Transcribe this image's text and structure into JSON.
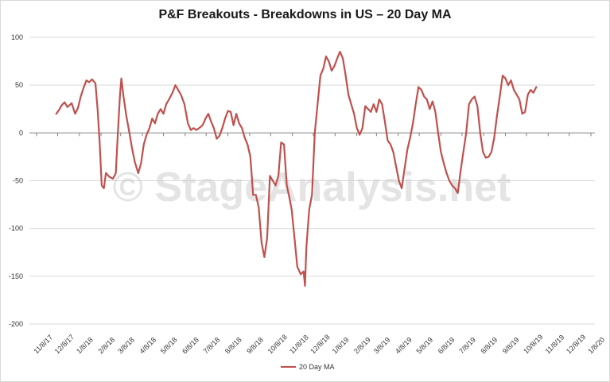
{
  "chart_data": {
    "type": "line",
    "title": "P&F Breakouts - Breakdowns in US – 20 Day MA",
    "ylim": [
      -200,
      100
    ],
    "y_ticks": [
      "100",
      "50",
      "0",
      "-50",
      "-100",
      "-150",
      "-200"
    ],
    "x_ticks": [
      "11/8/17",
      "12/8/17",
      "1/8/18",
      "2/8/18",
      "3/8/18",
      "4/8/18",
      "5/8/18",
      "6/8/18",
      "7/8/18",
      "8/8/18",
      "9/8/18",
      "10/8/18",
      "11/8/18",
      "12/8/18",
      "1/8/19",
      "2/8/19",
      "3/8/19",
      "4/8/19",
      "5/8/19",
      "6/8/19",
      "7/8/19",
      "8/8/19",
      "9/8/19",
      "10/8/19",
      "11/8/19",
      "12/8/19",
      "1/8/20"
    ],
    "grid": true,
    "legend_position": "bottom",
    "watermark": "© StageAnalysis.net",
    "series": [
      {
        "name": "20 Day MA",
        "color": "#c0504d",
        "points": [
          [
            "12/6/17",
            20
          ],
          [
            "12/10/17",
            24
          ],
          [
            "12/14/17",
            29
          ],
          [
            "12/18/17",
            32
          ],
          [
            "12/22/17",
            27
          ],
          [
            "12/28/17",
            31
          ],
          [
            "1/2/18",
            20
          ],
          [
            "1/6/18",
            26
          ],
          [
            "1/10/18",
            38
          ],
          [
            "1/14/18",
            47
          ],
          [
            "1/18/18",
            55
          ],
          [
            "1/22/18",
            53
          ],
          [
            "1/26/18",
            56
          ],
          [
            "1/31/18",
            52
          ],
          [
            "2/3/18",
            25
          ],
          [
            "2/6/18",
            -10
          ],
          [
            "2/9/18",
            -55
          ],
          [
            "2/12/18",
            -58
          ],
          [
            "2/15/18",
            -42
          ],
          [
            "2/20/18",
            -46
          ],
          [
            "2/25/18",
            -48
          ],
          [
            "3/1/18",
            -42
          ],
          [
            "3/4/18",
            0
          ],
          [
            "3/7/18",
            40
          ],
          [
            "3/9/18",
            57
          ],
          [
            "3/12/18",
            38
          ],
          [
            "3/16/18",
            18
          ],
          [
            "3/20/18",
            2
          ],
          [
            "3/24/18",
            -15
          ],
          [
            "3/28/18",
            -30
          ],
          [
            "4/2/18",
            -42
          ],
          [
            "4/6/18",
            -32
          ],
          [
            "4/10/18",
            -12
          ],
          [
            "4/14/18",
            -2
          ],
          [
            "4/18/18",
            5
          ],
          [
            "4/22/18",
            15
          ],
          [
            "4/26/18",
            10
          ],
          [
            "4/30/18",
            20
          ],
          [
            "5/4/18",
            25
          ],
          [
            "5/8/18",
            20
          ],
          [
            "5/12/18",
            30
          ],
          [
            "5/16/18",
            35
          ],
          [
            "5/21/18",
            42
          ],
          [
            "5/25/18",
            50
          ],
          [
            "5/29/18",
            45
          ],
          [
            "6/2/18",
            40
          ],
          [
            "6/7/18",
            30
          ],
          [
            "6/12/18",
            10
          ],
          [
            "6/16/18",
            3
          ],
          [
            "6/20/18",
            5
          ],
          [
            "6/24/18",
            3
          ],
          [
            "6/28/18",
            5
          ],
          [
            "7/3/18",
            8
          ],
          [
            "7/7/18",
            15
          ],
          [
            "7/11/18",
            20
          ],
          [
            "7/15/18",
            12
          ],
          [
            "7/19/18",
            5
          ],
          [
            "7/23/18",
            -6
          ],
          [
            "7/27/18",
            -3
          ],
          [
            "7/31/18",
            5
          ],
          [
            "8/4/18",
            15
          ],
          [
            "8/8/18",
            23
          ],
          [
            "8/12/18",
            22
          ],
          [
            "8/16/18",
            8
          ],
          [
            "8/20/18",
            20
          ],
          [
            "8/24/18",
            10
          ],
          [
            "8/28/18",
            5
          ],
          [
            "9/1/18",
            -5
          ],
          [
            "9/5/18",
            -12
          ],
          [
            "9/9/18",
            -25
          ],
          [
            "9/13/18",
            -65
          ],
          [
            "9/17/18",
            -65
          ],
          [
            "9/21/18",
            -78
          ],
          [
            "9/25/18",
            -115
          ],
          [
            "9/29/18",
            -130
          ],
          [
            "10/3/18",
            -110
          ],
          [
            "10/7/18",
            -45
          ],
          [
            "10/11/18",
            -50
          ],
          [
            "10/15/18",
            -55
          ],
          [
            "10/19/18",
            -45
          ],
          [
            "10/23/18",
            -10
          ],
          [
            "10/27/18",
            -12
          ],
          [
            "10/31/18",
            -55
          ],
          [
            "11/3/18",
            -65
          ],
          [
            "11/7/18",
            -80
          ],
          [
            "11/11/18",
            -110
          ],
          [
            "11/15/18",
            -140
          ],
          [
            "11/20/18",
            -148
          ],
          [
            "11/24/18",
            -145
          ],
          [
            "11/26/18",
            -160
          ],
          [
            "11/28/18",
            -120
          ],
          [
            "12/2/18",
            -80
          ],
          [
            "12/6/18",
            -65
          ],
          [
            "12/10/18",
            0
          ],
          [
            "12/14/18",
            30
          ],
          [
            "12/18/18",
            60
          ],
          [
            "12/22/18",
            67
          ],
          [
            "12/26/18",
            80
          ],
          [
            "12/30/18",
            75
          ],
          [
            "1/3/19",
            65
          ],
          [
            "1/7/19",
            70
          ],
          [
            "1/11/19",
            78
          ],
          [
            "1/15/19",
            85
          ],
          [
            "1/19/19",
            78
          ],
          [
            "1/23/19",
            60
          ],
          [
            "1/27/19",
            40
          ],
          [
            "1/31/19",
            30
          ],
          [
            "2/4/19",
            20
          ],
          [
            "2/8/19",
            5
          ],
          [
            "2/12/19",
            -2
          ],
          [
            "2/16/19",
            5
          ],
          [
            "2/20/19",
            28
          ],
          [
            "2/24/19",
            25
          ],
          [
            "2/28/19",
            22
          ],
          [
            "3/4/19",
            30
          ],
          [
            "3/8/19",
            22
          ],
          [
            "3/12/19",
            35
          ],
          [
            "3/16/19",
            30
          ],
          [
            "3/20/19",
            12
          ],
          [
            "3/24/19",
            -8
          ],
          [
            "3/28/19",
            -12
          ],
          [
            "4/1/19",
            -20
          ],
          [
            "4/5/19",
            -35
          ],
          [
            "4/9/19",
            -50
          ],
          [
            "4/13/19",
            -58
          ],
          [
            "4/17/19",
            -38
          ],
          [
            "4/21/19",
            -18
          ],
          [
            "4/25/19",
            -5
          ],
          [
            "4/29/19",
            10
          ],
          [
            "5/3/19",
            30
          ],
          [
            "5/7/19",
            48
          ],
          [
            "5/11/19",
            45
          ],
          [
            "5/15/19",
            38
          ],
          [
            "5/19/19",
            35
          ],
          [
            "5/23/19",
            25
          ],
          [
            "5/27/19",
            33
          ],
          [
            "5/31/19",
            22
          ],
          [
            "6/4/19",
            0
          ],
          [
            "6/8/19",
            -20
          ],
          [
            "6/12/19",
            -32
          ],
          [
            "6/16/19",
            -42
          ],
          [
            "6/20/19",
            -50
          ],
          [
            "6/24/19",
            -55
          ],
          [
            "6/28/19",
            -58
          ],
          [
            "7/2/19",
            -63
          ],
          [
            "7/6/19",
            -40
          ],
          [
            "7/10/19",
            -20
          ],
          [
            "7/14/19",
            0
          ],
          [
            "7/18/19",
            30
          ],
          [
            "7/22/19",
            35
          ],
          [
            "7/26/19",
            38
          ],
          [
            "7/30/19",
            28
          ],
          [
            "8/3/19",
            0
          ],
          [
            "8/7/19",
            -20
          ],
          [
            "8/11/19",
            -26
          ],
          [
            "8/15/19",
            -25
          ],
          [
            "8/19/19",
            -20
          ],
          [
            "8/23/19",
            -5
          ],
          [
            "8/27/19",
            18
          ],
          [
            "8/31/19",
            38
          ],
          [
            "9/4/19",
            60
          ],
          [
            "9/8/19",
            57
          ],
          [
            "9/12/19",
            50
          ],
          [
            "9/16/19",
            55
          ],
          [
            "9/20/19",
            45
          ],
          [
            "9/24/19",
            40
          ],
          [
            "9/28/19",
            35
          ],
          [
            "10/2/19",
            20
          ],
          [
            "10/6/19",
            22
          ],
          [
            "10/10/19",
            40
          ],
          [
            "10/14/19",
            45
          ],
          [
            "10/18/19",
            42
          ],
          [
            "10/22/19",
            48
          ]
        ]
      }
    ]
  }
}
